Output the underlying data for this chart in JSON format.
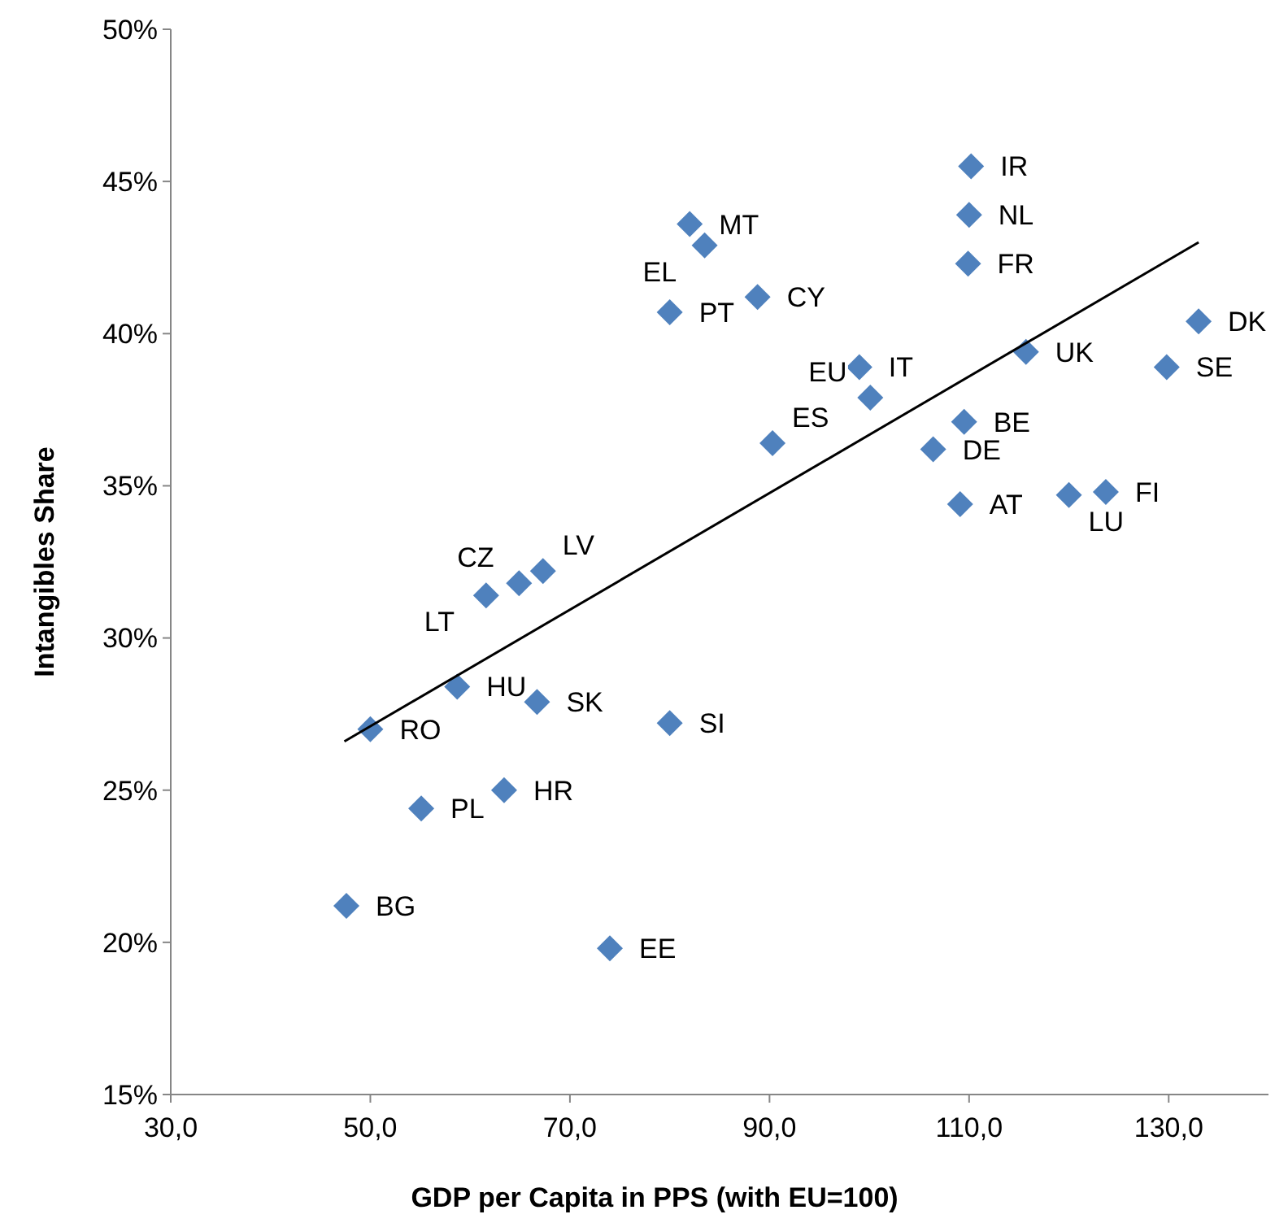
{
  "chart_data": {
    "type": "scatter",
    "xlabel": "GDP per Capita in PPS (with EU=100)",
    "ylabel": "Intangibles Share",
    "xlim": [
      30,
      140
    ],
    "xticks": [
      {
        "value": 30,
        "label": "30,0"
      },
      {
        "value": 50,
        "label": "50,0"
      },
      {
        "value": 70,
        "label": "70,0"
      },
      {
        "value": 90,
        "label": "90,0"
      },
      {
        "value": 110,
        "label": "110,0"
      },
      {
        "value": 130,
        "label": "130,0"
      }
    ],
    "ylim": [
      15,
      50
    ],
    "yticks": [
      {
        "value": 15,
        "label": "15%"
      },
      {
        "value": 20,
        "label": "20%"
      },
      {
        "value": 25,
        "label": "25%"
      },
      {
        "value": 30,
        "label": "30%"
      },
      {
        "value": 35,
        "label": "35%"
      },
      {
        "value": 40,
        "label": "40%"
      },
      {
        "value": 45,
        "label": "45%"
      },
      {
        "value": 50,
        "label": "50%"
      }
    ],
    "grid": false,
    "series": [
      {
        "type": "scatter",
        "color": "#4f81bd",
        "marker": "diamond",
        "x": [
          110.2,
          110.0,
          109.9,
          82.0,
          83.5,
          80.0,
          88.8,
          99.0,
          100.1,
          90.3,
          109.5,
          106.4,
          109.1,
          120.0,
          123.7,
          115.7,
          133.0,
          129.8,
          67.3,
          64.9,
          61.6,
          58.7,
          66.7,
          80.0,
          50.0,
          63.4,
          55.1,
          47.6,
          74.0
        ],
        "values": [
          45.5,
          43.9,
          42.3,
          43.6,
          42.9,
          40.7,
          41.2,
          38.9,
          37.9,
          36.4,
          37.1,
          36.2,
          34.4,
          34.7,
          34.8,
          39.4,
          40.4,
          38.9,
          32.2,
          31.8,
          31.4,
          28.4,
          27.9,
          27.2,
          27.0,
          25.0,
          24.4,
          21.2,
          19.8
        ],
        "value_labels": [
          "IR",
          "NL",
          "FR",
          "MT",
          "EL",
          "PT",
          "CY",
          "IT",
          "EU",
          "ES",
          "BE",
          "DE",
          "AT",
          "LU",
          "FI",
          "UK",
          "DK",
          "SE",
          "LV",
          "CZ",
          "LT",
          "HU",
          "SK",
          "SI",
          "RO",
          "HR",
          "PL",
          "BG",
          "EE"
        ]
      },
      {
        "type": "line",
        "color": "#000000",
        "marker": "none",
        "line_style": "solid",
        "x": [
          47.4,
          133.0
        ],
        "values": [
          26.6,
          43.0
        ]
      }
    ]
  }
}
